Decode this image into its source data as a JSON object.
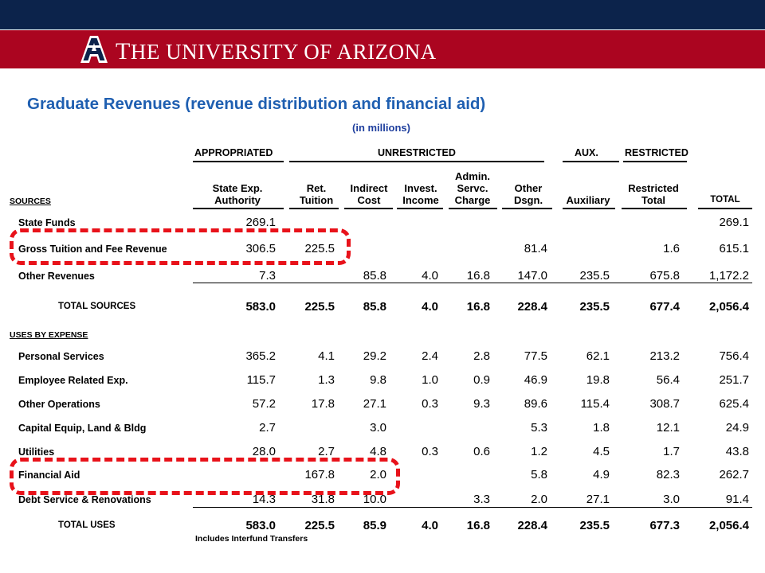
{
  "header": {
    "university_prefix": "T",
    "university_name": "HE UNIVERSITY OF ARIZONA",
    "logo_icon": "arizona-a-logo-icon",
    "colors": {
      "navy": "#0c234b",
      "red": "#ab0520",
      "title_blue": "#1f5fb1",
      "highlight_red": "#e8121a"
    }
  },
  "slide": {
    "title": "Graduate Revenues (revenue distribution and  financial aid)",
    "subtitle": "(in millions)"
  },
  "table": {
    "groups": {
      "appropriated": "APPROPRIATED",
      "unrestricted": "UNRESTRICTED",
      "aux": "AUX.",
      "restricted": "RESTRICTED"
    },
    "columns": [
      "State Exp.\nAuthority",
      "Ret.\nTuition",
      "Indirect\nCost",
      "Invest.\nIncome",
      "Admin.\nServc.\nCharge",
      "Other\nDsgn.",
      "Auxiliary",
      "Restricted\nTotal",
      "TOTAL"
    ],
    "sources_label": "SOURCES",
    "sources": [
      {
        "label": "State Funds",
        "values": [
          "269.1",
          "",
          "",
          "",
          "",
          "",
          "",
          "",
          "269.1"
        ]
      },
      {
        "label": "Gross Tuition and Fee Revenue",
        "values": [
          "306.5",
          "225.5",
          "",
          "",
          "",
          "81.4",
          "",
          "1.6",
          "615.1"
        ]
      },
      {
        "label": "Other Revenues",
        "values": [
          "7.3",
          "",
          "85.8",
          "4.0",
          "16.8",
          "147.0",
          "235.5",
          "675.8",
          "1,172.2"
        ]
      }
    ],
    "total_sources": {
      "label": "TOTAL SOURCES",
      "values": [
        "583.0",
        "225.5",
        "85.8",
        "4.0",
        "16.8",
        "228.4",
        "235.5",
        "677.4",
        "2,056.4"
      ]
    },
    "uses_label": "USES BY EXPENSE",
    "uses": [
      {
        "label": "Personal Services",
        "values": [
          "365.2",
          "4.1",
          "29.2",
          "2.4",
          "2.8",
          "77.5",
          "62.1",
          "213.2",
          "756.4"
        ]
      },
      {
        "label": "Employee Related Exp.",
        "values": [
          "115.7",
          "1.3",
          "9.8",
          "1.0",
          "0.9",
          "46.9",
          "19.8",
          "56.4",
          "251.7"
        ]
      },
      {
        "label": "Other Operations",
        "values": [
          "57.2",
          "17.8",
          "27.1",
          "0.3",
          "9.3",
          "89.6",
          "115.4",
          "308.7",
          "625.4"
        ]
      },
      {
        "label": "Capital Equip, Land & Bldg",
        "values": [
          "2.7",
          "",
          "3.0",
          "",
          "",
          "5.3",
          "1.8",
          "12.1",
          "24.9"
        ]
      },
      {
        "label": "Utilities",
        "values": [
          "28.0",
          "2.7",
          "4.8",
          "0.3",
          "0.6",
          "1.2",
          "4.5",
          "1.7",
          "43.8"
        ]
      },
      {
        "label": "Financial Aid",
        "values": [
          "",
          "167.8",
          "2.0",
          "",
          "",
          "5.8",
          "4.9",
          "82.3",
          "262.7"
        ]
      },
      {
        "label": "Debt Service & Renovations",
        "values": [
          "14.3",
          "31.8",
          "10.0",
          "",
          "3.3",
          "2.0",
          "27.1",
          "3.0",
          "91.4"
        ]
      }
    ],
    "total_uses": {
      "label": "TOTAL USES",
      "values": [
        "583.0",
        "225.5",
        "85.9",
        "4.0",
        "16.8",
        "228.4",
        "235.5",
        "677.3",
        "2,056.4"
      ]
    },
    "footnote": "Includes Interfund Transfers"
  }
}
